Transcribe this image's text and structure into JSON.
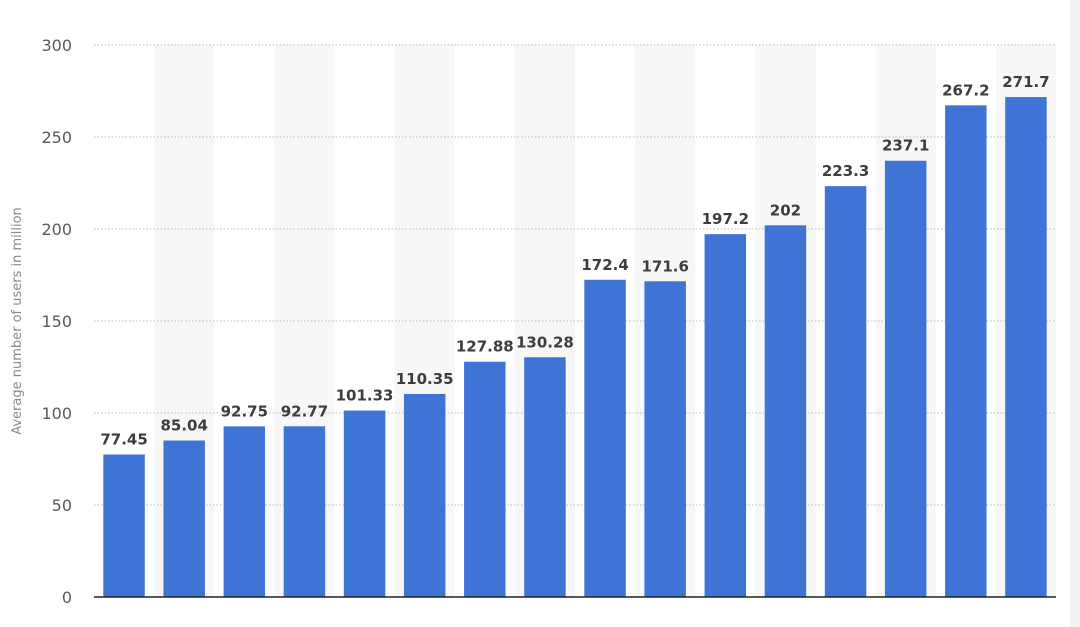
{
  "chart_data": {
    "type": "bar",
    "title": "",
    "xlabel": "",
    "ylabel": "Average number of users in million",
    "ylim": [
      0,
      300
    ],
    "yticks": [
      0,
      50,
      100,
      150,
      200,
      250,
      300
    ],
    "grid": true,
    "categories": [
      "",
      "",
      "",
      "",
      "",
      "",
      "",
      "",
      "",
      "",
      "",
      "",
      "",
      "",
      "",
      ""
    ],
    "values": [
      77.45,
      85.04,
      92.75,
      92.77,
      101.33,
      110.35,
      127.88,
      130.28,
      172.4,
      171.6,
      197.2,
      202,
      223.3,
      237.1,
      267.2,
      271.7
    ],
    "data_labels": [
      "77.45",
      "85.04",
      "92.75",
      "92.77",
      "101.33",
      "110.35",
      "127.88",
      "130.28",
      "172.4",
      "171.6",
      "197.2",
      "202",
      "223.3",
      "237.1",
      "267.2",
      "271.7"
    ],
    "bar_color": "#3f74d6",
    "band_color": "#f7f7f7",
    "grid_color": "#b8b8b8",
    "axis_color": "#222222"
  }
}
